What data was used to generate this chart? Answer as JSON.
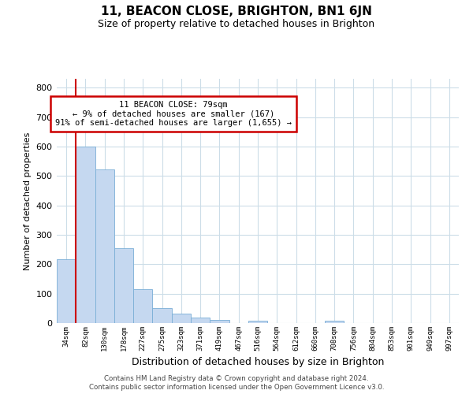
{
  "title": "11, BEACON CLOSE, BRIGHTON, BN1 6JN",
  "subtitle": "Size of property relative to detached houses in Brighton",
  "xlabel": "Distribution of detached houses by size in Brighton",
  "ylabel": "Number of detached properties",
  "bar_labels": [
    "34sqm",
    "82sqm",
    "130sqm",
    "178sqm",
    "227sqm",
    "275sqm",
    "323sqm",
    "371sqm",
    "419sqm",
    "467sqm",
    "516sqm",
    "564sqm",
    "612sqm",
    "660sqm",
    "708sqm",
    "756sqm",
    "804sqm",
    "853sqm",
    "901sqm",
    "949sqm",
    "997sqm"
  ],
  "bar_values": [
    218,
    600,
    522,
    255,
    115,
    50,
    33,
    20,
    10,
    0,
    8,
    0,
    0,
    0,
    8,
    0,
    0,
    0,
    0,
    0,
    0
  ],
  "bar_color": "#c5d8f0",
  "bar_edge_color": "#7aaed6",
  "vline_color": "#cc0000",
  "annotation_title": "11 BEACON CLOSE: 79sqm",
  "annotation_line1": "← 9% of detached houses are smaller (167)",
  "annotation_line2": "91% of semi-detached houses are larger (1,655) →",
  "annotation_box_color": "#cc0000",
  "ylim": [
    0,
    830
  ],
  "yticks": [
    0,
    100,
    200,
    300,
    400,
    500,
    600,
    700,
    800
  ],
  "footer1": "Contains HM Land Registry data © Crown copyright and database right 2024.",
  "footer2": "Contains public sector information licensed under the Open Government Licence v3.0.",
  "bg_color": "#ffffff",
  "grid_color": "#ccdde8"
}
